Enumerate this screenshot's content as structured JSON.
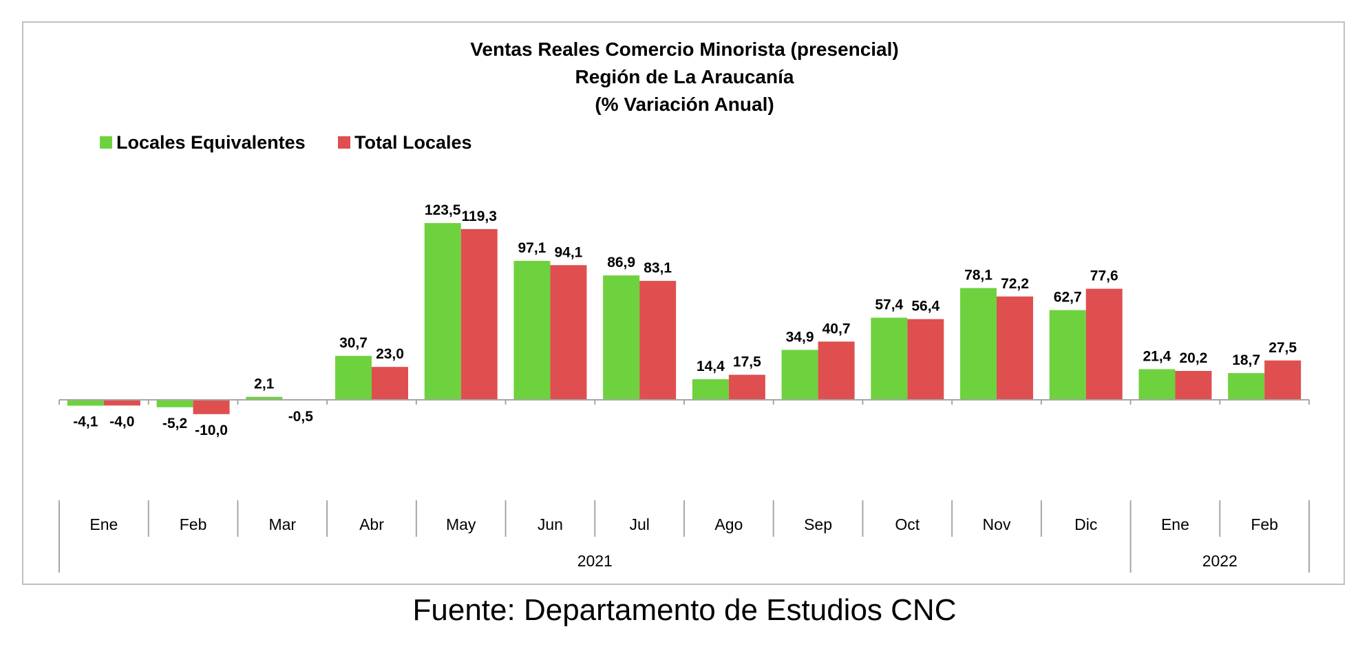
{
  "chart_data": {
    "type": "bar",
    "title": "Ventas Reales Comercio Minorista (presencial)",
    "subtitle": "Región de La Araucanía",
    "subtitle2": "(% Variación Anual)",
    "categories": [
      "Ene",
      "Feb",
      "Mar",
      "Abr",
      "May",
      "Jun",
      "Jul",
      "Ago",
      "Sep",
      "Oct",
      "Nov",
      "Dic",
      "Ene",
      "Feb"
    ],
    "groups": [
      {
        "label": "2021",
        "count": 12
      },
      {
        "label": "2022",
        "count": 2
      }
    ],
    "series": [
      {
        "name": "Locales Equivalentes",
        "color": "#6ed23f",
        "values": [
          -4.1,
          -5.2,
          2.1,
          30.7,
          123.5,
          97.1,
          86.9,
          14.4,
          34.9,
          57.4,
          78.1,
          62.7,
          21.4,
          18.7
        ],
        "labels": [
          "-4,1",
          "-5,2",
          "2,1",
          "30,7",
          "123,5",
          "97,1",
          "86,9",
          "14,4",
          "34,9",
          "57,4",
          "78,1",
          "62,7",
          "21,4",
          "18,7"
        ]
      },
      {
        "name": "Total Locales",
        "color": "#df4f4f",
        "values": [
          -4.0,
          -10.0,
          -0.5,
          23.0,
          119.3,
          94.1,
          83.1,
          17.5,
          40.7,
          56.4,
          72.2,
          77.6,
          20.2,
          27.5
        ],
        "labels": [
          "-4,0",
          "-10,0",
          "-0,5",
          "23,0",
          "119,3",
          "94,1",
          "83,1",
          "17,5",
          "40,7",
          "56,4",
          "72,2",
          "77,6",
          "20,2",
          "27,5"
        ]
      }
    ],
    "legend_position": "top-left",
    "grid": false
  },
  "source": "Fuente: Departamento de Estudios CNC"
}
